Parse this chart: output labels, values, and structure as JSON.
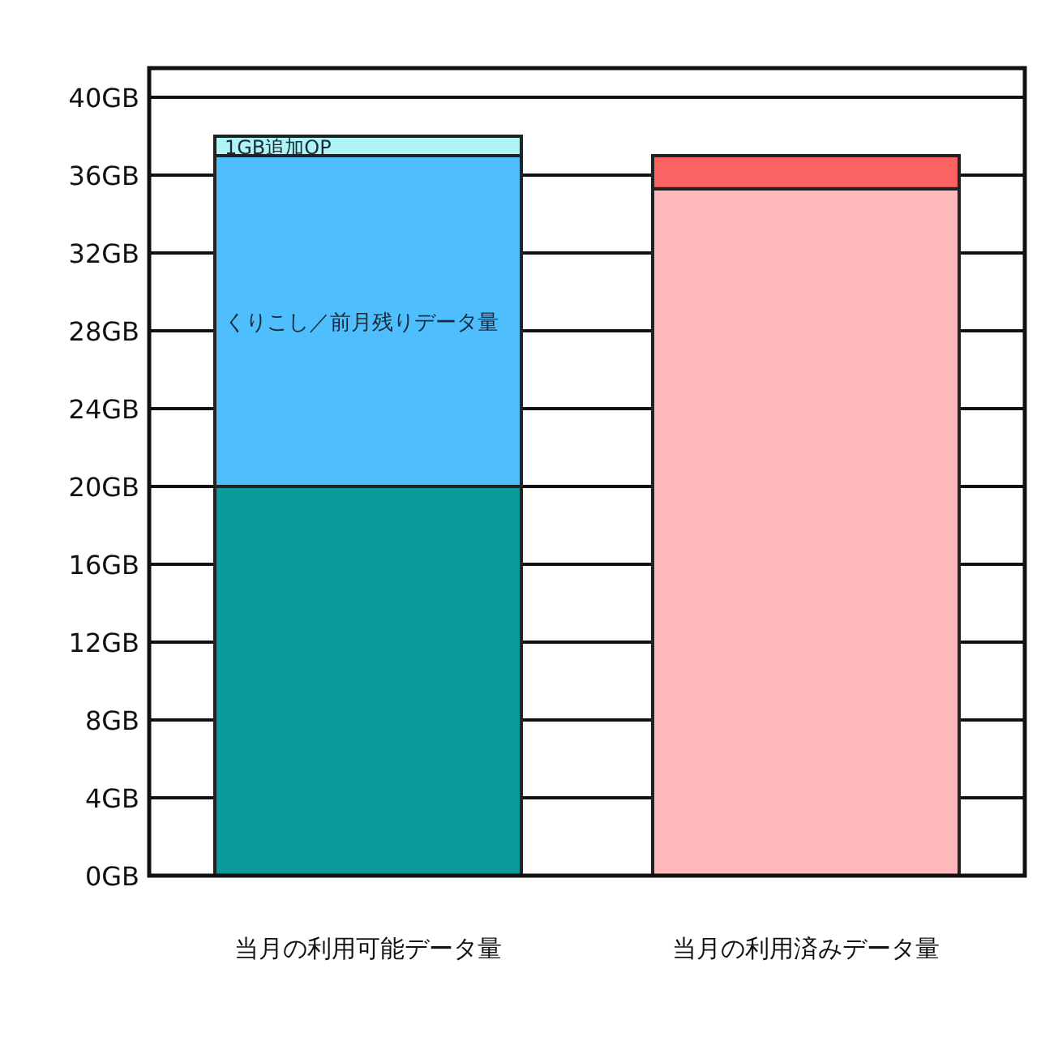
{
  "chart_data": {
    "type": "bar",
    "stacked": true,
    "categories": [
      "当月の利用可能データ量",
      "当月の利用済みデータ量"
    ],
    "series": [
      {
        "colors": [
          "#0b9a9c",
          "#ffb8bb"
        ],
        "values": [
          20,
          35.3
        ]
      },
      {
        "name": "くりこし／前月残りデータ量",
        "colors": [
          "#4ebffc",
          "#fb6262"
        ],
        "values": [
          17,
          1.7
        ]
      },
      {
        "name": "1GB追加OP",
        "colors": [
          "#aef4f4",
          null
        ],
        "values": [
          1,
          null
        ]
      }
    ],
    "ylim": [
      0,
      41.5
    ],
    "yticks": [
      {
        "value": 0,
        "label": "0GB"
      },
      {
        "value": 4,
        "label": "4GB"
      },
      {
        "value": 8,
        "label": "8GB"
      },
      {
        "value": 12,
        "label": "12GB"
      },
      {
        "value": 16,
        "label": "16GB"
      },
      {
        "value": 20,
        "label": "20GB"
      },
      {
        "value": 24,
        "label": "24GB"
      },
      {
        "value": 28,
        "label": "28GB"
      },
      {
        "value": 32,
        "label": "32GB"
      },
      {
        "value": 36,
        "label": "36GB"
      },
      {
        "value": 40,
        "label": "40GB"
      }
    ],
    "grid": "y"
  }
}
